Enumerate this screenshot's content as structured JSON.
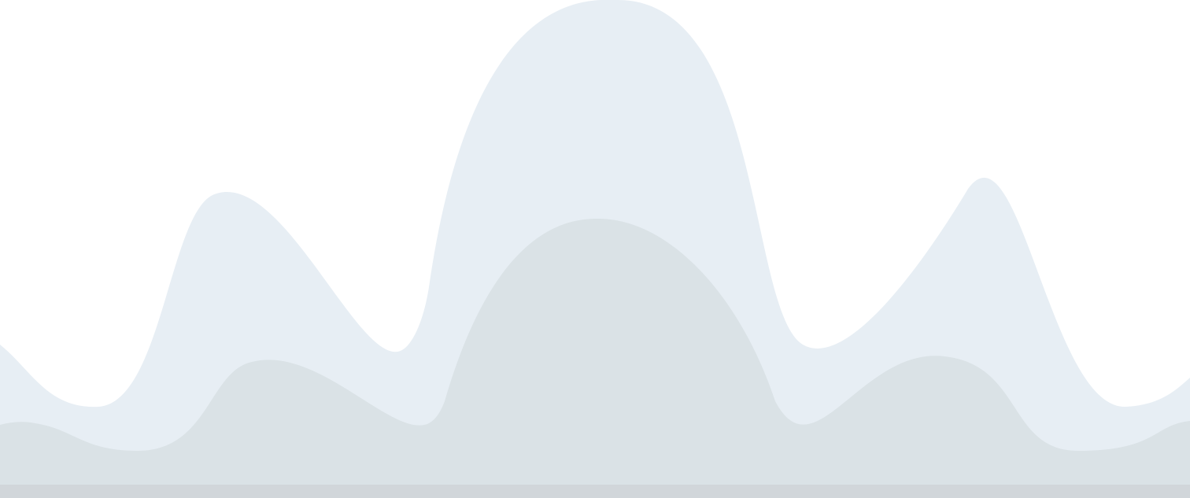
{
  "colors": {
    "background": "#ffffff",
    "back_wave": "#e7eef4",
    "front_wave": "#dae2e6",
    "ground_strip": "#d1d6da"
  }
}
